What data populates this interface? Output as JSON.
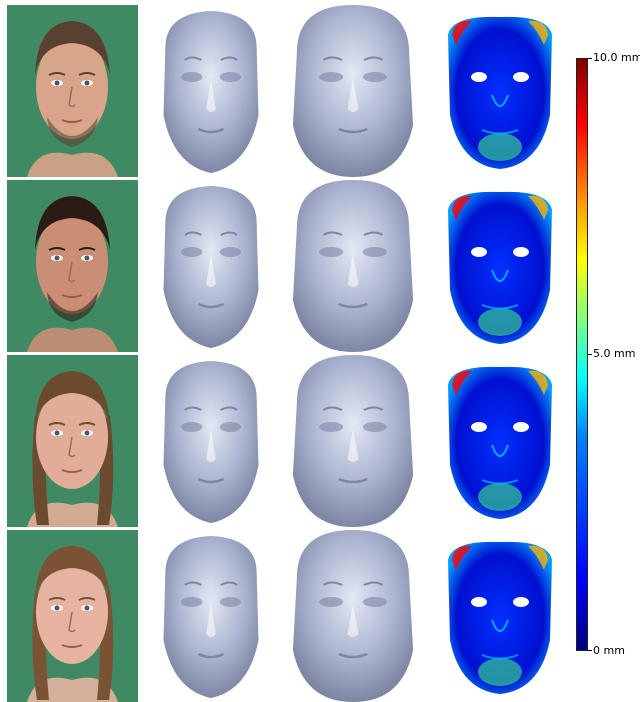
{
  "colorbar": {
    "max_label": "10.0 mm",
    "mid_label": "5.0 mm",
    "min_label": "0 mm",
    "colormap": "jet"
  },
  "rows": [
    {
      "subject": "male-1",
      "hair": "#5a4030",
      "skin": "#d8a48a",
      "beard": true
    },
    {
      "subject": "male-2",
      "hair": "#2a1c14",
      "skin": "#c98e74",
      "beard": true
    },
    {
      "subject": "female-1",
      "hair": "#6b4a30",
      "skin": "#e2ad98",
      "beard": false
    },
    {
      "subject": "female-2",
      "hair": "#7a5234",
      "skin": "#e6b3a0",
      "beard": false
    }
  ],
  "colors": {
    "photo_background": "#3f8a63",
    "mesh": "#a9b3cf",
    "mesh_shadow": "#7d86a3",
    "error_low": "#0000ff",
    "error_high": "#ff0000"
  }
}
